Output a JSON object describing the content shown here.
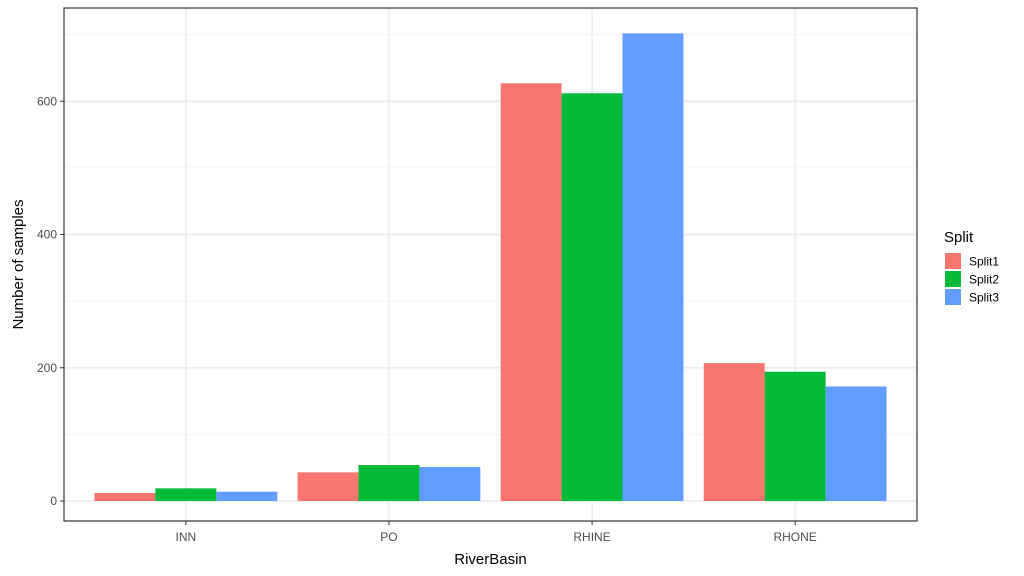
{
  "chart_data": {
    "type": "bar",
    "title": "",
    "xlabel": "RiverBasin",
    "ylabel": "Number of samples",
    "categories": [
      "INN",
      "PO",
      "RHINE",
      "RHONE"
    ],
    "series": [
      {
        "name": "Split1",
        "color": "#F8766D",
        "values": [
          12,
          43,
          627,
          207
        ]
      },
      {
        "name": "Split2",
        "color": "#00BA38",
        "values": [
          19,
          54,
          612,
          194
        ]
      },
      {
        "name": "Split3",
        "color": "#619CFF",
        "values": [
          14,
          51,
          702,
          172
        ]
      }
    ],
    "ylim": [
      -30,
      740
    ],
    "yticks": [
      0,
      200,
      400,
      600
    ],
    "ytick_labels": [
      "0",
      "200",
      "400",
      "600"
    ],
    "grid": true,
    "legend": {
      "title": "Split",
      "placement": "right"
    }
  }
}
